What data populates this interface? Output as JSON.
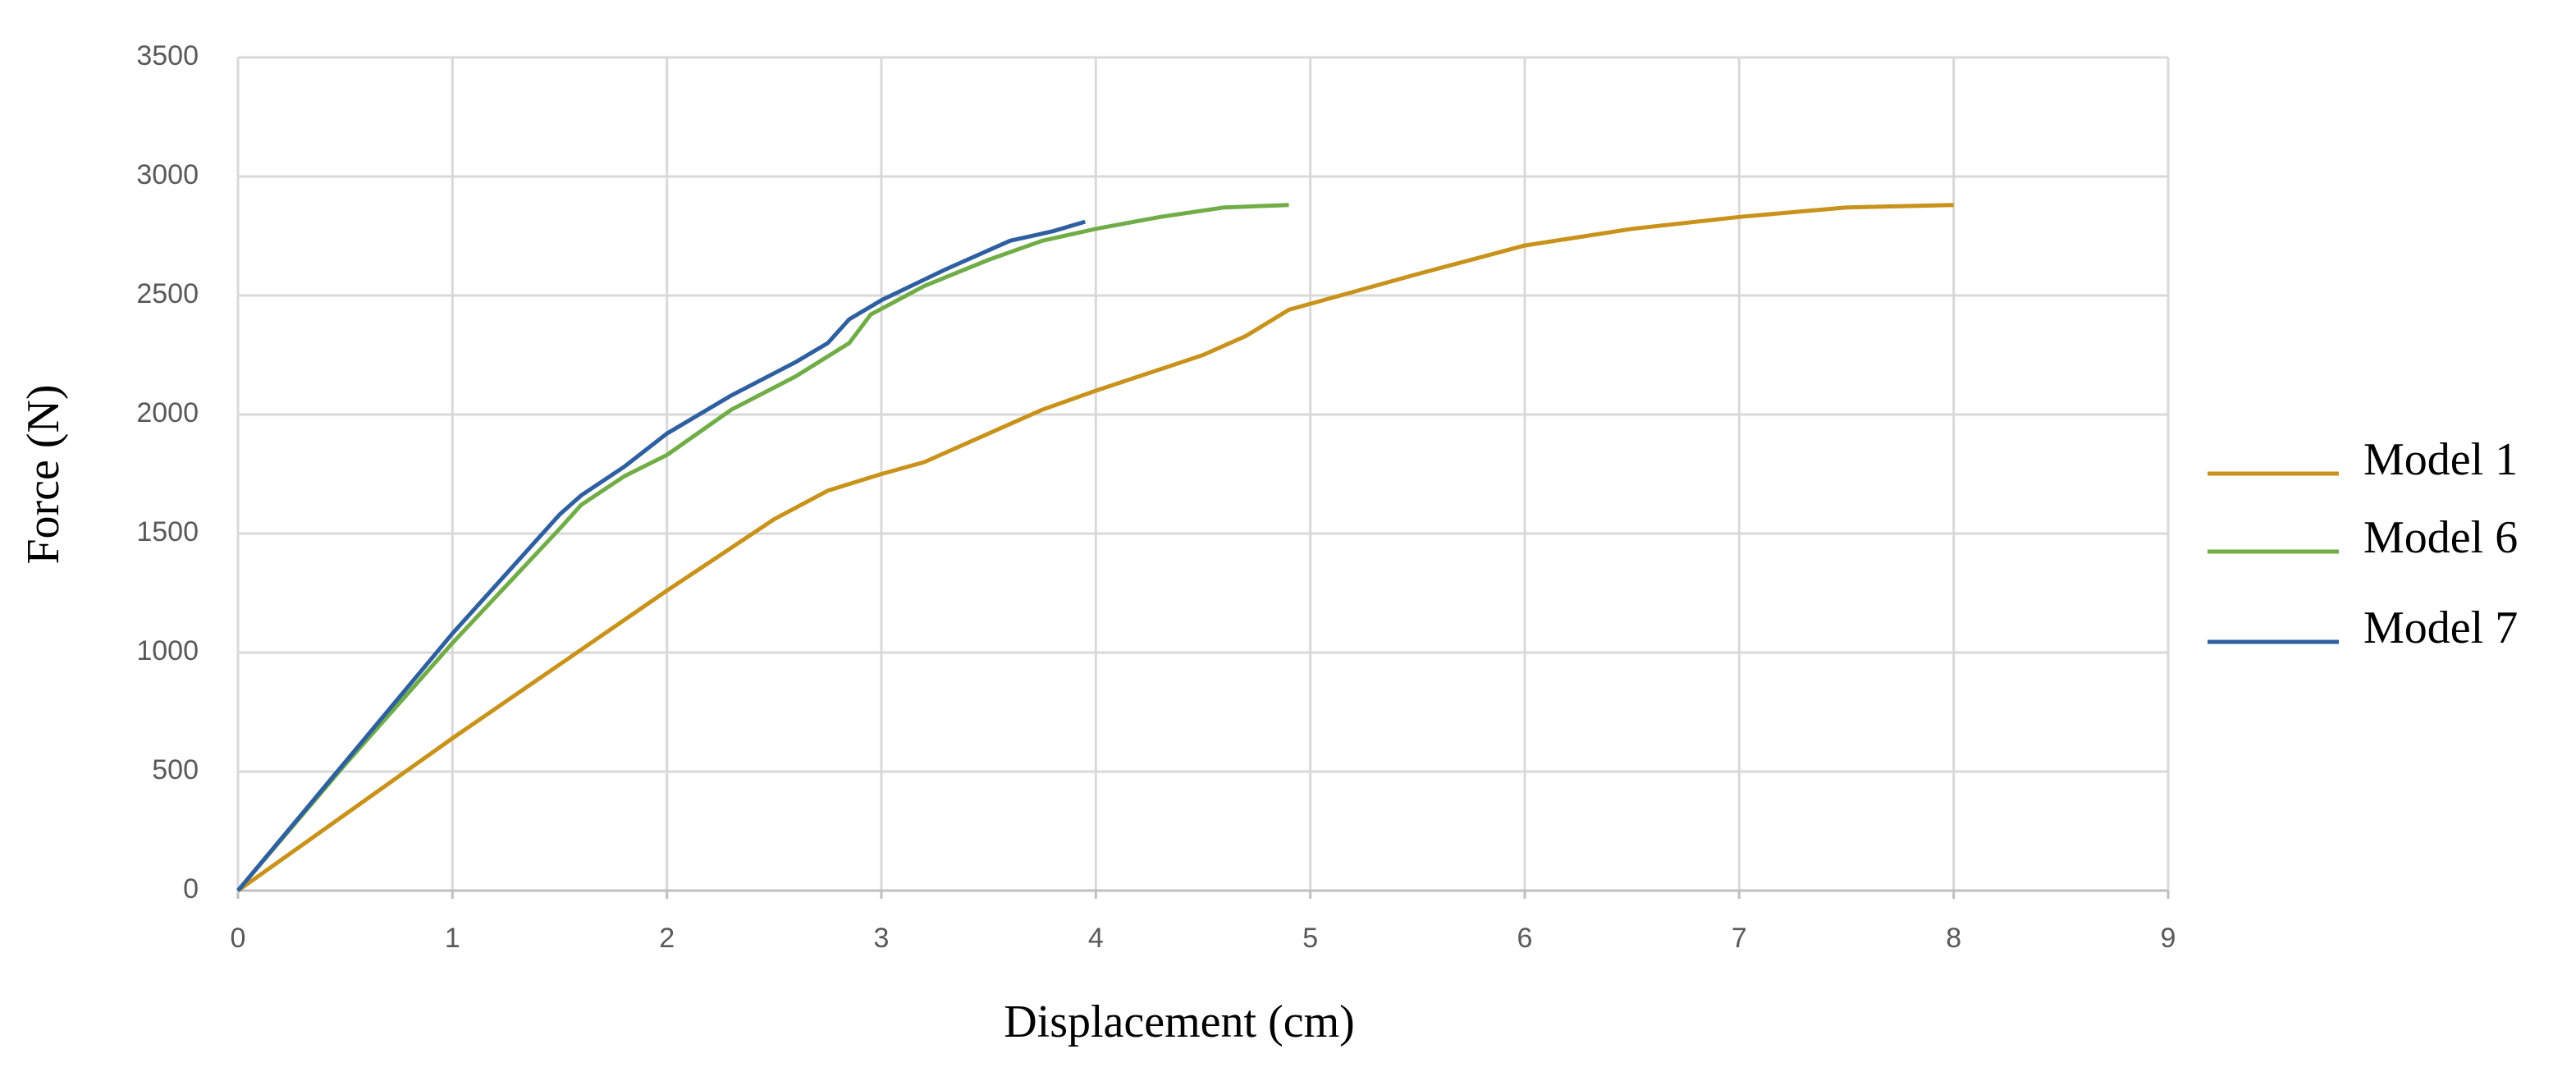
{
  "chart_data": {
    "type": "line",
    "x_label": "Displacement (cm)",
    "y_label": "Force (N)",
    "xlim": [
      0,
      9
    ],
    "xticks": [
      0,
      1,
      2,
      3,
      4,
      5,
      6,
      7,
      8,
      9
    ],
    "ylim": [
      0,
      3500
    ],
    "yticks": [
      0,
      500,
      1000,
      1500,
      2000,
      2500,
      3000,
      3500
    ],
    "grid": true,
    "legend": "right",
    "series": [
      {
        "name": "Model 1",
        "color": "#c9921a",
        "x": [
          0,
          0.5,
          1,
          1.5,
          2,
          2.5,
          2.75,
          3,
          3.2,
          3.5,
          3.75,
          4,
          4.5,
          4.7,
          4.9,
          5.5,
          6,
          6.5,
          7,
          7.5,
          8
        ],
        "values": [
          0,
          320,
          640,
          950,
          1260,
          1560,
          1680,
          1750,
          1800,
          1920,
          2020,
          2100,
          2250,
          2330,
          2440,
          2590,
          2710,
          2780,
          2830,
          2870,
          2880
        ]
      },
      {
        "name": "Model 6",
        "color": "#70ad47",
        "x": [
          0,
          0.5,
          1,
          1.5,
          1.6,
          1.8,
          2,
          2.3,
          2.6,
          2.85,
          2.95,
          3.2,
          3.5,
          3.75,
          4,
          4.3,
          4.6,
          4.9
        ],
        "values": [
          0,
          530,
          1040,
          1520,
          1620,
          1740,
          1830,
          2020,
          2160,
          2300,
          2420,
          2540,
          2650,
          2730,
          2780,
          2830,
          2870,
          2880
        ]
      },
      {
        "name": "Model 7",
        "color": "#2e5fa0",
        "x": [
          0,
          0.5,
          1,
          1.5,
          1.6,
          1.8,
          2,
          2.3,
          2.6,
          2.75,
          2.85,
          3,
          3.3,
          3.6,
          3.8,
          3.95
        ],
        "values": [
          0,
          540,
          1080,
          1580,
          1660,
          1780,
          1920,
          2080,
          2220,
          2300,
          2400,
          2480,
          2610,
          2730,
          2770,
          2810
        ]
      }
    ]
  }
}
